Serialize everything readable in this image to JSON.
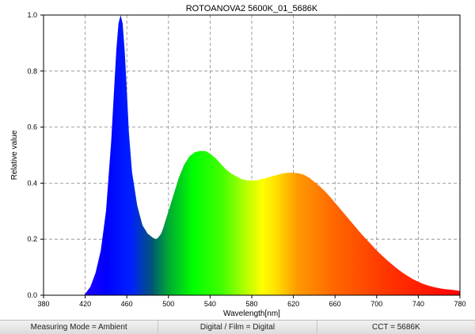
{
  "chart_data": {
    "type": "area",
    "title": "ROTOANOVA2 5600K_01_5686K",
    "xlabel": "Wavelength[nm]",
    "ylabel": "Relative value",
    "xlim": [
      380,
      780
    ],
    "ylim": [
      0,
      1.0
    ],
    "x_ticks": [
      "380",
      "420",
      "460",
      "500",
      "540",
      "580",
      "620",
      "660",
      "700",
      "740",
      "780"
    ],
    "y_ticks": [
      "0.0",
      "0.2",
      "0.4",
      "0.6",
      "0.8",
      "1.0"
    ],
    "grid": true,
    "fill": "visible-spectrum-gradient",
    "x": [
      419,
      425,
      430,
      435,
      440,
      445,
      448,
      450,
      452,
      454,
      456,
      458,
      460,
      462,
      465,
      470,
      475,
      480,
      485,
      488,
      490,
      493,
      495,
      500,
      505,
      510,
      515,
      520,
      525,
      530,
      535,
      538,
      540,
      545,
      550,
      555,
      560,
      565,
      570,
      575,
      580,
      585,
      590,
      595,
      600,
      605,
      610,
      615,
      620,
      625,
      630,
      635,
      640,
      645,
      650,
      655,
      660,
      665,
      670,
      675,
      680,
      685,
      690,
      695,
      700,
      705,
      710,
      715,
      720,
      725,
      730,
      735,
      740,
      745,
      750,
      755,
      760,
      765,
      770,
      775,
      780
    ],
    "y": [
      0.0,
      0.03,
      0.08,
      0.16,
      0.3,
      0.55,
      0.75,
      0.88,
      0.97,
      1.0,
      0.97,
      0.87,
      0.73,
      0.58,
      0.44,
      0.32,
      0.25,
      0.22,
      0.205,
      0.2,
      0.205,
      0.22,
      0.24,
      0.3,
      0.36,
      0.42,
      0.465,
      0.495,
      0.51,
      0.515,
      0.515,
      0.51,
      0.505,
      0.49,
      0.47,
      0.45,
      0.435,
      0.425,
      0.415,
      0.41,
      0.41,
      0.41,
      0.415,
      0.42,
      0.425,
      0.43,
      0.435,
      0.437,
      0.437,
      0.435,
      0.43,
      0.42,
      0.405,
      0.39,
      0.372,
      0.352,
      0.33,
      0.308,
      0.286,
      0.264,
      0.242,
      0.22,
      0.2,
      0.18,
      0.16,
      0.142,
      0.125,
      0.109,
      0.094,
      0.08,
      0.068,
      0.057,
      0.048,
      0.04,
      0.034,
      0.029,
      0.025,
      0.022,
      0.02,
      0.018,
      0.015
    ]
  },
  "status": {
    "measuring_mode": "Measuring Mode = Ambient",
    "digital_film": "Digital / Film = Digital",
    "cct": "CCT = 5686K"
  }
}
